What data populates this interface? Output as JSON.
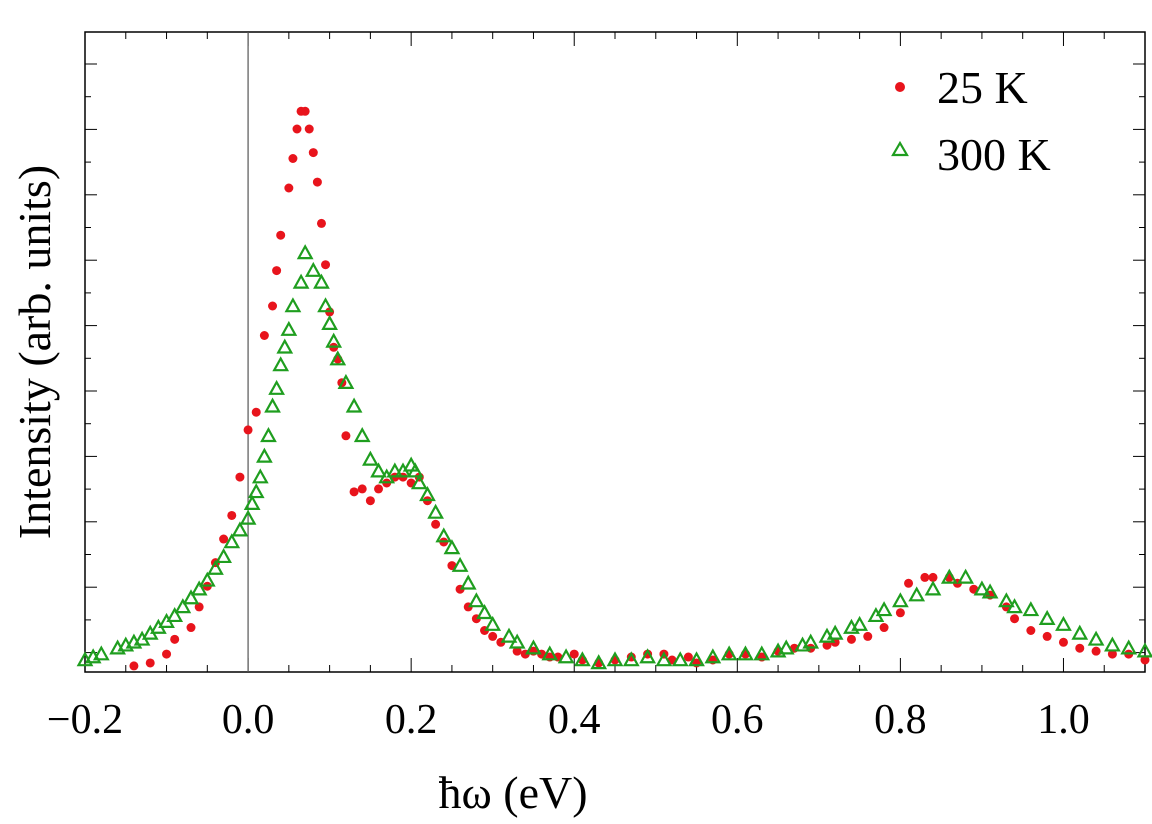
{
  "chart_data": {
    "type": "scatter",
    "title": "",
    "xlabel": "ħω (eV)",
    "ylabel": "Intensity (arb. units)",
    "xlim": [
      -0.2,
      1.1
    ],
    "ylim": [
      0,
      1.0
    ],
    "x_ticks": [
      -0.2,
      0.0,
      0.2,
      0.4,
      0.6,
      0.8,
      1.0
    ],
    "x_tick_labels": [
      "−0.2",
      "0.0",
      "0.2",
      "0.4",
      "0.6",
      "0.8",
      "1.0"
    ],
    "y_tick_labels_shown": false,
    "reference_line_x": 0.0,
    "legend_position": "top-right",
    "series": [
      {
        "name": "25 K",
        "marker": "filled-circle",
        "color": "#e8141c",
        "x": [
          -0.15,
          -0.14,
          -0.12,
          -0.1,
          -0.09,
          -0.07,
          -0.06,
          -0.05,
          -0.04,
          -0.03,
          -0.02,
          -0.01,
          0.0,
          0.01,
          0.02,
          0.03,
          0.035,
          0.04,
          0.05,
          0.055,
          0.06,
          0.065,
          0.07,
          0.075,
          0.08,
          0.085,
          0.09,
          0.095,
          0.1,
          0.105,
          0.11,
          0.115,
          0.12,
          0.13,
          0.14,
          0.15,
          0.16,
          0.17,
          0.18,
          0.19,
          0.2,
          0.21,
          0.22,
          0.23,
          0.24,
          0.25,
          0.26,
          0.27,
          0.28,
          0.29,
          0.3,
          0.31,
          0.33,
          0.34,
          0.35,
          0.36,
          0.37,
          0.38,
          0.4,
          0.41,
          0.43,
          0.45,
          0.47,
          0.49,
          0.51,
          0.52,
          0.54,
          0.55,
          0.57,
          0.59,
          0.61,
          0.63,
          0.65,
          0.67,
          0.69,
          0.71,
          0.72,
          0.74,
          0.76,
          0.78,
          0.8,
          0.81,
          0.83,
          0.84,
          0.86,
          0.87,
          0.89,
          0.91,
          0.93,
          0.94,
          0.96,
          0.98,
          1.0,
          1.02,
          1.04,
          1.06,
          1.08,
          1.1
        ],
        "y": [
          -0.02,
          -0.01,
          -0.005,
          0.01,
          0.035,
          0.055,
          0.09,
          0.125,
          0.165,
          0.205,
          0.245,
          0.31,
          0.39,
          0.42,
          0.55,
          0.6,
          0.66,
          0.72,
          0.8,
          0.85,
          0.9,
          0.93,
          0.93,
          0.9,
          0.86,
          0.81,
          0.74,
          0.67,
          0.59,
          0.53,
          0.51,
          0.47,
          0.38,
          0.285,
          0.29,
          0.27,
          0.29,
          0.3,
          0.31,
          0.31,
          0.3,
          0.31,
          0.27,
          0.23,
          0.2,
          0.16,
          0.12,
          0.09,
          0.07,
          0.05,
          0.04,
          0.03,
          0.015,
          0.01,
          0.015,
          0.01,
          0.005,
          0.005,
          0.01,
          0.0,
          -0.005,
          0.0,
          0.005,
          0.01,
          0.01,
          0.0,
          0.005,
          -0.005,
          0.0,
          0.01,
          0.01,
          0.005,
          0.015,
          0.02,
          0.02,
          0.025,
          0.03,
          0.035,
          0.04,
          0.055,
          0.08,
          0.13,
          0.14,
          0.14,
          0.14,
          0.13,
          0.12,
          0.11,
          0.09,
          0.07,
          0.05,
          0.04,
          0.03,
          0.02,
          0.015,
          0.01,
          0.01,
          0.0
        ]
      },
      {
        "name": "300 K",
        "marker": "open-triangle",
        "color": "#1f9e1f",
        "x": [
          -0.2,
          -0.19,
          -0.18,
          -0.16,
          -0.15,
          -0.14,
          -0.13,
          -0.12,
          -0.11,
          -0.1,
          -0.09,
          -0.08,
          -0.07,
          -0.06,
          -0.05,
          -0.04,
          -0.03,
          -0.02,
          -0.01,
          0.0,
          0.005,
          0.01,
          0.015,
          0.02,
          0.025,
          0.03,
          0.035,
          0.04,
          0.045,
          0.05,
          0.055,
          0.065,
          0.07,
          0.08,
          0.09,
          0.095,
          0.1,
          0.105,
          0.11,
          0.12,
          0.13,
          0.14,
          0.15,
          0.16,
          0.17,
          0.18,
          0.19,
          0.2,
          0.205,
          0.21,
          0.22,
          0.23,
          0.24,
          0.25,
          0.26,
          0.27,
          0.28,
          0.29,
          0.3,
          0.32,
          0.33,
          0.35,
          0.37,
          0.39,
          0.41,
          0.43,
          0.45,
          0.47,
          0.49,
          0.51,
          0.53,
          0.55,
          0.57,
          0.59,
          0.61,
          0.63,
          0.65,
          0.66,
          0.68,
          0.69,
          0.71,
          0.72,
          0.74,
          0.75,
          0.77,
          0.78,
          0.8,
          0.82,
          0.84,
          0.86,
          0.88,
          0.9,
          0.91,
          0.93,
          0.94,
          0.96,
          0.98,
          1.0,
          1.02,
          1.04,
          1.06,
          1.08,
          1.1
        ],
        "y": [
          0.0,
          0.005,
          0.01,
          0.02,
          0.025,
          0.03,
          0.035,
          0.045,
          0.055,
          0.065,
          0.075,
          0.09,
          0.105,
          0.12,
          0.135,
          0.155,
          0.175,
          0.2,
          0.22,
          0.24,
          0.265,
          0.285,
          0.31,
          0.345,
          0.38,
          0.43,
          0.46,
          0.5,
          0.53,
          0.56,
          0.6,
          0.64,
          0.69,
          0.66,
          0.64,
          0.6,
          0.57,
          0.54,
          0.51,
          0.47,
          0.43,
          0.38,
          0.34,
          0.32,
          0.31,
          0.32,
          0.32,
          0.33,
          0.32,
          0.3,
          0.28,
          0.25,
          0.21,
          0.19,
          0.16,
          0.13,
          0.1,
          0.08,
          0.06,
          0.04,
          0.03,
          0.02,
          0.01,
          0.005,
          0.0,
          -0.005,
          0.0,
          0.0,
          0.005,
          0.0,
          0.0,
          0.0,
          0.005,
          0.01,
          0.01,
          0.01,
          0.015,
          0.02,
          0.025,
          0.03,
          0.04,
          0.045,
          0.055,
          0.06,
          0.075,
          0.085,
          0.1,
          0.11,
          0.12,
          0.14,
          0.14,
          0.12,
          0.115,
          0.1,
          0.09,
          0.085,
          0.07,
          0.06,
          0.045,
          0.035,
          0.025,
          0.02,
          0.015
        ]
      }
    ]
  }
}
